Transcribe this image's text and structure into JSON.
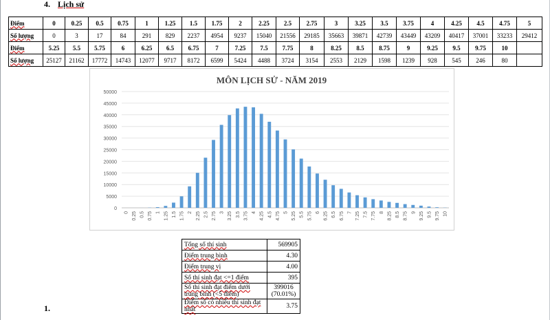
{
  "heading": {
    "number": "4.",
    "subject": "Lịch sử"
  },
  "score_table": {
    "row_label_score": "Điểm",
    "row_label_count": "Số lượng",
    "row1_scores": [
      "0",
      "0.25",
      "0.5",
      "0.75",
      "1",
      "1.25",
      "1.5",
      "1.75",
      "2",
      "2.25",
      "2.5",
      "2.75",
      "3",
      "3.25",
      "3.5",
      "3.75",
      "4",
      "4.25",
      "4.5",
      "4.75",
      "5"
    ],
    "row1_counts": [
      "0",
      "3",
      "17",
      "84",
      "291",
      "829",
      "2237",
      "4954",
      "9237",
      "15040",
      "21556",
      "29185",
      "35663",
      "39871",
      "42739",
      "43449",
      "43209",
      "40417",
      "37001",
      "33233",
      "29412"
    ],
    "row2_scores": [
      "5.25",
      "5.5",
      "5.75",
      "6",
      "6.25",
      "6.5",
      "6.75",
      "7",
      "7.25",
      "7.5",
      "7.75",
      "8",
      "8.25",
      "8.5",
      "8.75",
      "9",
      "9.25",
      "9.5",
      "9.75",
      "10"
    ],
    "row2_counts": [
      "25127",
      "21162",
      "17772",
      "14743",
      "12077",
      "9717",
      "8172",
      "6599",
      "5424",
      "4488",
      "3724",
      "3154",
      "2553",
      "2129",
      "1598",
      "1239",
      "928",
      "545",
      "246",
      "80"
    ]
  },
  "chart_data": {
    "type": "bar",
    "title": "MÔN LỊCH SỬ - NĂM 2019",
    "xlabel": "",
    "ylabel": "",
    "ylim": [
      0,
      50000
    ],
    "yticks": [
      0,
      5000,
      10000,
      15000,
      20000,
      25000,
      30000,
      35000,
      40000,
      45000,
      50000
    ],
    "grid": true,
    "legend": "none",
    "bar_color": "#5b9bd5",
    "categories": [
      "0",
      "0.25",
      "0.5",
      "0.75",
      "1",
      "1.25",
      "1.5",
      "1.75",
      "2",
      "2.25",
      "2.5",
      "2.75",
      "3",
      "3.25",
      "3.5",
      "3.75",
      "4",
      "4.25",
      "4.5",
      "4.75",
      "5",
      "5.25",
      "5.5",
      "5.75",
      "6",
      "6.25",
      "6.5",
      "6.75",
      "7",
      "7.25",
      "7.5",
      "7.75",
      "8",
      "8.25",
      "8.5",
      "8.75",
      "9",
      "9.25",
      "9.5",
      "9.75",
      "10"
    ],
    "values": [
      0,
      3,
      17,
      84,
      291,
      829,
      2237,
      4954,
      9237,
      15040,
      21556,
      29185,
      35663,
      39871,
      42739,
      43449,
      43209,
      40417,
      37001,
      33233,
      29412,
      25127,
      21162,
      17772,
      14743,
      12077,
      9717,
      8172,
      6599,
      5424,
      4488,
      3724,
      3154,
      2553,
      2129,
      1598,
      1239,
      928,
      545,
      246,
      80
    ]
  },
  "summary": [
    {
      "label": "Tổng số thí sinh",
      "value": "569905"
    },
    {
      "label": "Điểm trung bình",
      "value": "4.30"
    },
    {
      "label": "Điểm trung vị",
      "value": "4.00"
    },
    {
      "label": "Số thí sinh đạt <=1 điểm",
      "value": "395"
    },
    {
      "label": "Số thí sinh đạt điểm dưới trung bình (<5 điểm)",
      "value": "399016",
      "value2": "(70.01%)"
    },
    {
      "label": "Điểm số có nhiều thí sinh đạt nhất",
      "value": "3.75"
    }
  ],
  "list_marker": "1."
}
